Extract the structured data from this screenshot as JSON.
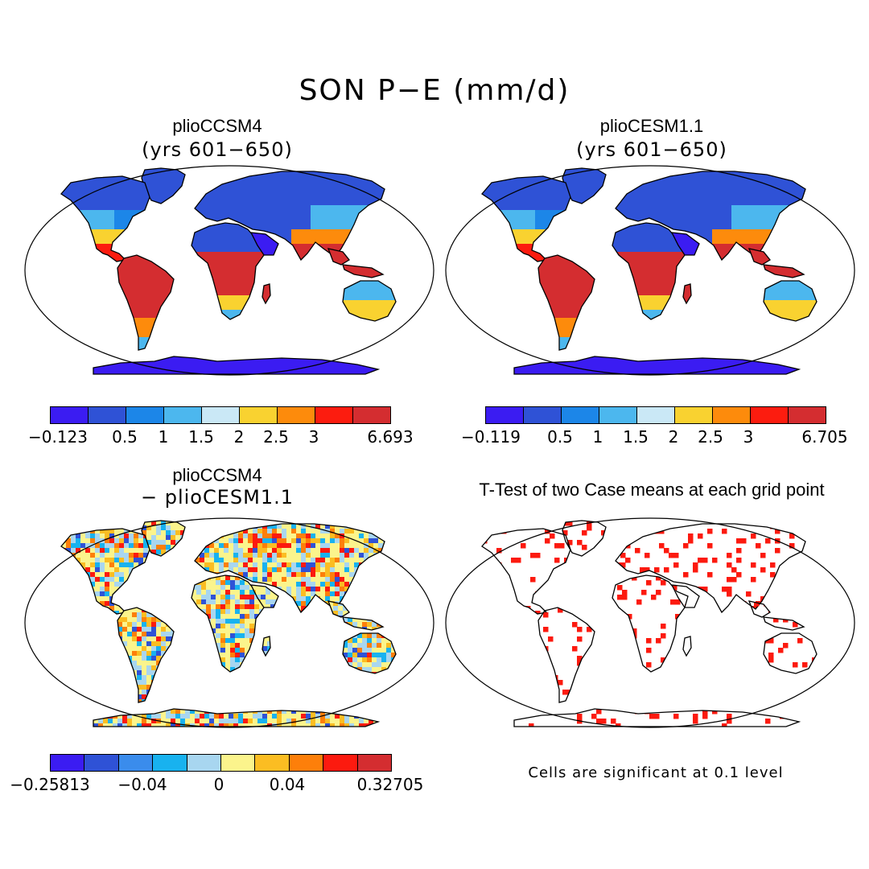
{
  "figure": {
    "title": "SON P−E (mm/d)"
  },
  "panels": [
    {
      "title": "plioCCSM4",
      "subtitle": "(yrs 601−650)",
      "colorbar": {
        "colors": [
          "#3b1cf2",
          "#2f52d6",
          "#1c86e8",
          "#4cb7ee",
          "#cae8f6",
          "#f9d230",
          "#fd8b0c",
          "#fc1c0f",
          "#d42d30"
        ],
        "ticks": [
          "−0.123",
          "0.5",
          "1",
          "1.5",
          "2",
          "2.5",
          "3",
          "6.693"
        ]
      }
    },
    {
      "title": "plioCESM1.1",
      "subtitle": "(yrs 601−650)",
      "colorbar": {
        "colors": [
          "#3b1cf2",
          "#2f52d6",
          "#1c86e8",
          "#4cb7ee",
          "#cae8f6",
          "#f9d230",
          "#fd8b0c",
          "#fc1c0f",
          "#d42d30"
        ],
        "ticks": [
          "−0.119",
          "0.5",
          "1",
          "1.5",
          "2",
          "2.5",
          "3",
          "6.705"
        ]
      }
    },
    {
      "title": "plioCCSM4",
      "subtitle": "− plioCESM1.1",
      "colorbar": {
        "colors": [
          "#3b1cf2",
          "#2f52d6",
          "#3a8cec",
          "#18b2ef",
          "#a8d6f0",
          "#fbf48c",
          "#fbbd22",
          "#fd7f0a",
          "#fc1a0f",
          "#d42d30"
        ],
        "ticks": [
          "−0.25813",
          "−0.04",
          "0",
          "0.04",
          "0.32705"
        ]
      }
    },
    {
      "title": "T-Test of two Case means at each grid point",
      "note": "Cells are significant at 0.1 level",
      "significance_color": "#fc1a0f"
    }
  ]
}
